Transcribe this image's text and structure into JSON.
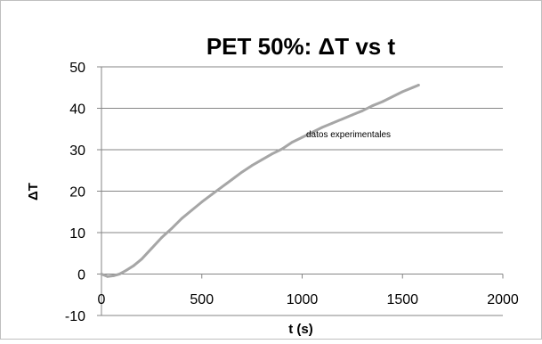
{
  "chart_data": {
    "type": "line",
    "title": "PET 50%: ΔT vs t",
    "xlabel": "t (s)",
    "ylabel": "ΔT",
    "xlim": [
      0,
      2000
    ],
    "ylim": [
      -10,
      50
    ],
    "x_ticks": [
      0,
      500,
      1000,
      1500,
      2000
    ],
    "y_ticks": [
      -10,
      0,
      10,
      20,
      30,
      40,
      50
    ],
    "grid": "horizontal",
    "series": [
      {
        "name": "datos experimentales",
        "color": "#a6a6a6",
        "x": [
          0,
          30,
          60,
          90,
          120,
          160,
          200,
          250,
          300,
          350,
          400,
          450,
          500,
          550,
          600,
          650,
          700,
          750,
          800,
          850,
          900,
          950,
          1000,
          1050,
          1100,
          1150,
          1200,
          1250,
          1300,
          1350,
          1400,
          1450,
          1500,
          1550,
          1580
        ],
        "y": [
          0.0,
          -0.6,
          -0.4,
          0.0,
          0.8,
          2.0,
          3.6,
          6.2,
          8.8,
          11.0,
          13.4,
          15.4,
          17.4,
          19.2,
          21.0,
          22.8,
          24.6,
          26.2,
          27.6,
          29.0,
          30.2,
          31.8,
          33.0,
          34.2,
          35.4,
          36.4,
          37.4,
          38.4,
          39.4,
          40.6,
          41.6,
          42.8,
          44.0,
          45.0,
          45.6
        ]
      }
    ],
    "annotations": [
      {
        "text": "datos experimentales",
        "x": 1020,
        "y": 33
      }
    ]
  }
}
